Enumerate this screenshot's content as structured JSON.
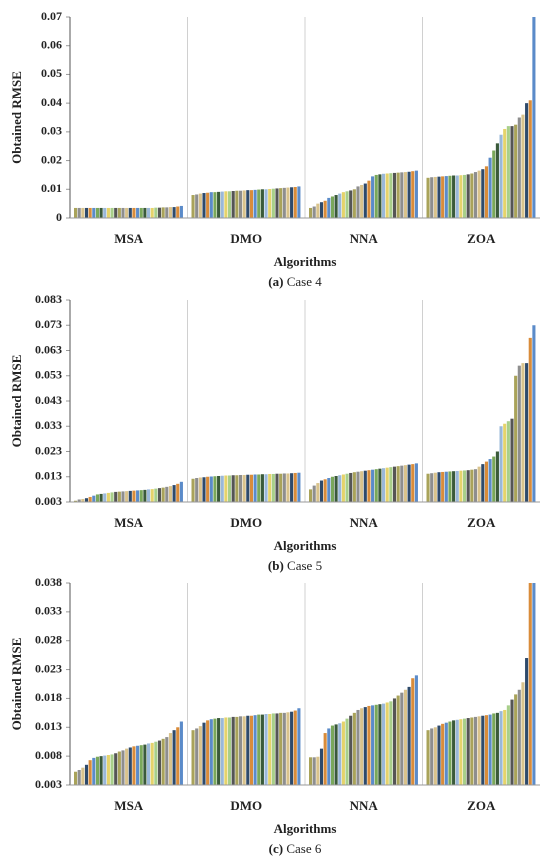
{
  "chart_data": [
    {
      "type": "bar",
      "caption_label": "(a)",
      "caption": "Case 4",
      "ylabel": "Obtained RMSE",
      "xlabel": "Algorithms",
      "ylim": [
        0,
        0.07
      ],
      "yticks": [
        0,
        0.01,
        0.02,
        0.03,
        0.04,
        0.05,
        0.06,
        0.07
      ],
      "palette": [
        "#a9a35a",
        "#8e8e8e",
        "#d9c38c",
        "#2e4a6b",
        "#d98c3a",
        "#5b8bc9",
        "#7aa85a",
        "#3a5a3a",
        "#9ab8d9",
        "#e5d36b",
        "#a8cf8a",
        "#555555"
      ],
      "groups": [
        {
          "name": "MSA",
          "values": [
            0.0035,
            0.0035,
            0.0035,
            0.0035,
            0.0035,
            0.0035,
            0.0035,
            0.0035,
            0.0035,
            0.0035,
            0.0035,
            0.0035,
            0.0035,
            0.0035,
            0.0035,
            0.0035,
            0.0035,
            0.0035,
            0.0035,
            0.0035,
            0.0035,
            0.0035,
            0.0036,
            0.0036,
            0.0037,
            0.0037,
            0.0038,
            0.0038,
            0.004,
            0.0042
          ]
        },
        {
          "name": "DMO",
          "values": [
            0.008,
            0.0082,
            0.0085,
            0.0087,
            0.0088,
            0.009,
            0.009,
            0.0091,
            0.0092,
            0.0093,
            0.0093,
            0.0094,
            0.0095,
            0.0095,
            0.0096,
            0.0097,
            0.0097,
            0.0098,
            0.0099,
            0.01,
            0.01,
            0.0101,
            0.0102,
            0.0103,
            0.0104,
            0.0105,
            0.0106,
            0.0107,
            0.0108,
            0.011
          ]
        },
        {
          "name": "NNA",
          "values": [
            0.0035,
            0.004,
            0.005,
            0.0055,
            0.006,
            0.007,
            0.0075,
            0.008,
            0.0085,
            0.009,
            0.0093,
            0.0096,
            0.01,
            0.011,
            0.0115,
            0.012,
            0.013,
            0.0145,
            0.015,
            0.0152,
            0.0154,
            0.0155,
            0.0156,
            0.0157,
            0.0158,
            0.0159,
            0.016,
            0.0161,
            0.0163,
            0.0165
          ]
        },
        {
          "name": "ZOA",
          "values": [
            0.014,
            0.0142,
            0.0143,
            0.0144,
            0.0145,
            0.0146,
            0.0147,
            0.0148,
            0.0148,
            0.0149,
            0.015,
            0.0152,
            0.0155,
            0.016,
            0.0165,
            0.017,
            0.018,
            0.021,
            0.0235,
            0.026,
            0.029,
            0.031,
            0.032,
            0.032,
            0.0325,
            0.035,
            0.036,
            0.04,
            0.041,
            0.07
          ]
        }
      ]
    },
    {
      "type": "bar",
      "caption_label": "(b)",
      "caption": "Case 5",
      "ylabel": "Obtained RMSE",
      "xlabel": "Algorithms",
      "ylim": [
        0.003,
        0.083
      ],
      "yticks": [
        0.003,
        0.013,
        0.023,
        0.033,
        0.043,
        0.053,
        0.063,
        0.073,
        0.083
      ],
      "palette": [
        "#a9a35a",
        "#8e8e8e",
        "#d9c38c",
        "#2e4a6b",
        "#d98c3a",
        "#5b8bc9",
        "#7aa85a",
        "#3a5a3a",
        "#9ab8d9",
        "#e5d36b",
        "#a8cf8a",
        "#555555"
      ],
      "groups": [
        {
          "name": "MSA",
          "values": [
            0.0035,
            0.004,
            0.0042,
            0.0045,
            0.005,
            0.0055,
            0.006,
            0.0062,
            0.0064,
            0.0066,
            0.0068,
            0.007,
            0.0071,
            0.0072,
            0.0073,
            0.0074,
            0.0075,
            0.0076,
            0.0077,
            0.0078,
            0.008,
            0.0081,
            0.0083,
            0.0085,
            0.0087,
            0.009,
            0.0093,
            0.0097,
            0.0102,
            0.011
          ]
        },
        {
          "name": "DMO",
          "values": [
            0.0122,
            0.0125,
            0.0127,
            0.0128,
            0.013,
            0.0131,
            0.0132,
            0.0133,
            0.0134,
            0.0135,
            0.0135,
            0.0136,
            0.0136,
            0.0137,
            0.0137,
            0.0138,
            0.0138,
            0.0139,
            0.0139,
            0.014,
            0.014,
            0.0141,
            0.0141,
            0.0142,
            0.0142,
            0.0143,
            0.0143,
            0.0144,
            0.0145,
            0.0146
          ]
        },
        {
          "name": "NNA",
          "values": [
            0.008,
            0.0095,
            0.0105,
            0.0115,
            0.012,
            0.0125,
            0.013,
            0.0133,
            0.0136,
            0.0139,
            0.0142,
            0.0145,
            0.0148,
            0.015,
            0.0152,
            0.0154,
            0.0156,
            0.0158,
            0.016,
            0.0162,
            0.0164,
            0.0166,
            0.0168,
            0.017,
            0.0172,
            0.0174,
            0.0176,
            0.0178,
            0.018,
            0.0183
          ]
        },
        {
          "name": "ZOA",
          "values": [
            0.0142,
            0.0144,
            0.0146,
            0.0148,
            0.0149,
            0.015,
            0.0151,
            0.0152,
            0.0153,
            0.0154,
            0.0155,
            0.0156,
            0.0158,
            0.016,
            0.017,
            0.018,
            0.019,
            0.02,
            0.021,
            0.023,
            0.033,
            0.034,
            0.035,
            0.036,
            0.053,
            0.057,
            0.058,
            0.058,
            0.068,
            0.073
          ]
        }
      ]
    },
    {
      "type": "bar",
      "caption_label": "(c)",
      "caption": "Case 6",
      "ylabel": "Obtained RMSE",
      "xlabel": "Algorithms",
      "ylim": [
        0.003,
        0.038
      ],
      "yticks": [
        0.003,
        0.008,
        0.013,
        0.018,
        0.023,
        0.028,
        0.033,
        0.038
      ],
      "palette": [
        "#a9a35a",
        "#8e8e8e",
        "#d9c38c",
        "#2e4a6b",
        "#d98c3a",
        "#5b8bc9",
        "#7aa85a",
        "#3a5a3a",
        "#9ab8d9",
        "#e5d36b",
        "#a8cf8a",
        "#555555"
      ],
      "groups": [
        {
          "name": "MSA",
          "values": [
            0.0053,
            0.0056,
            0.006,
            0.0065,
            0.0073,
            0.0077,
            0.0079,
            0.008,
            0.0081,
            0.0082,
            0.0083,
            0.0085,
            0.0088,
            0.009,
            0.0093,
            0.0095,
            0.0097,
            0.0098,
            0.0099,
            0.01,
            0.0102,
            0.0103,
            0.0105,
            0.0107,
            0.011,
            0.0113,
            0.012,
            0.0125,
            0.013,
            0.014
          ]
        },
        {
          "name": "DMO",
          "values": [
            0.0125,
            0.0128,
            0.0132,
            0.0138,
            0.0142,
            0.0144,
            0.0145,
            0.0146,
            0.0146,
            0.0147,
            0.0147,
            0.0148,
            0.0148,
            0.0149,
            0.0149,
            0.015,
            0.015,
            0.0151,
            0.0152,
            0.0152,
            0.0153,
            0.0153,
            0.0154,
            0.0154,
            0.0155,
            0.0155,
            0.0156,
            0.0157,
            0.0159,
            0.0163
          ]
        },
        {
          "name": "NNA",
          "values": [
            0.0078,
            0.0078,
            0.0079,
            0.0093,
            0.012,
            0.0128,
            0.0133,
            0.0135,
            0.0137,
            0.014,
            0.0145,
            0.015,
            0.0155,
            0.016,
            0.0163,
            0.0165,
            0.0167,
            0.0168,
            0.0169,
            0.017,
            0.0171,
            0.0173,
            0.0175,
            0.018,
            0.0185,
            0.019,
            0.0195,
            0.02,
            0.0215,
            0.022
          ]
        },
        {
          "name": "ZOA",
          "values": [
            0.0125,
            0.0128,
            0.013,
            0.0133,
            0.0136,
            0.0138,
            0.014,
            0.0142,
            0.0143,
            0.0144,
            0.0145,
            0.0146,
            0.0147,
            0.0148,
            0.0149,
            0.015,
            0.0151,
            0.0152,
            0.0154,
            0.0155,
            0.0158,
            0.016,
            0.0168,
            0.0178,
            0.0187,
            0.0195,
            0.0208,
            0.025,
            0.038,
            0.038
          ]
        }
      ]
    }
  ]
}
